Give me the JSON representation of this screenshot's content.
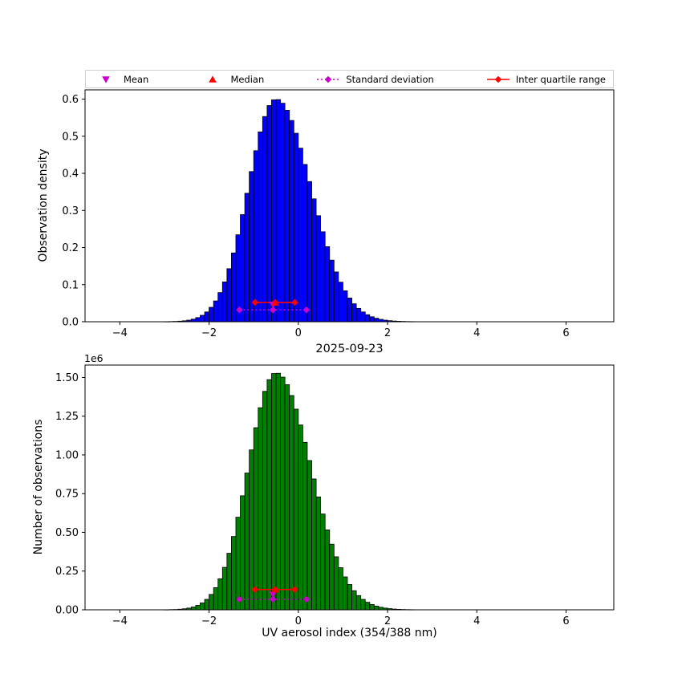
{
  "figure": {
    "xlabel": "UV aerosol index (354/388 nm)",
    "legend": {
      "items": [
        {
          "label": "Mean",
          "marker": "triangle-down",
          "color": "#cc00cc",
          "line": "none"
        },
        {
          "label": "Median",
          "marker": "triangle-up",
          "color": "#ff0000",
          "line": "none"
        },
        {
          "label": "Standard deviation",
          "marker": "diamond",
          "color": "#cc00cc",
          "line": "dotted"
        },
        {
          "label": "Inter quartile range",
          "marker": "diamond",
          "color": "#ff0000",
          "line": "solid"
        }
      ]
    }
  },
  "chart_data": [
    {
      "type": "bar",
      "name": "observation-density-histogram",
      "ylabel": "Observation density",
      "bar_color": "#0000ff",
      "bin_start": -3.0,
      "bin_width": 0.1,
      "values": [
        0.0002,
        0.0005,
        0.0008,
        0.0015,
        0.0025,
        0.0043,
        0.007,
        0.0112,
        0.0174,
        0.0264,
        0.0389,
        0.0561,
        0.0786,
        0.1074,
        0.143,
        0.1855,
        0.2344,
        0.2887,
        0.3463,
        0.4048,
        0.461,
        0.5116,
        0.5531,
        0.5827,
        0.5981,
        0.5988,
        0.589,
        0.57,
        0.5425,
        0.508,
        0.4679,
        0.424,
        0.3779,
        0.3313,
        0.2858,
        0.2425,
        0.2023,
        0.1661,
        0.1342,
        0.1066,
        0.0833,
        0.064,
        0.0484,
        0.036,
        0.0264,
        0.019,
        0.0134,
        0.0094,
        0.0064,
        0.0043,
        0.0029,
        0.0019,
        0.0012,
        0.0008,
        0.0005,
        0.0003
      ],
      "xlim": [
        -4.78,
        7.07
      ],
      "ylim": [
        0,
        0.625
      ],
      "xticks": [
        -4,
        -2,
        0,
        2,
        4,
        6
      ],
      "xtick_labels": [
        "−4",
        "−2",
        "0",
        "2",
        "4",
        "6"
      ],
      "yticks": [
        0,
        0.1,
        0.2,
        0.3,
        0.4,
        0.5,
        0.6
      ],
      "ytick_labels": [
        "0.0",
        "0.1",
        "0.2",
        "0.3",
        "0.4",
        "0.5",
        "0.6"
      ],
      "annotations": [
        {
          "kind": "errorbar",
          "name": "standard-deviation",
          "color": "#cc00cc",
          "style": "dotted",
          "y": 0.032,
          "x1": -1.32,
          "x2": 0.18,
          "center": -0.57,
          "marker": "diamond"
        },
        {
          "kind": "errorbar",
          "name": "inter-quartile-range",
          "color": "#ff0000",
          "style": "solid",
          "y": 0.052,
          "x1": -0.97,
          "x2": -0.08,
          "center": -0.52,
          "marker": "diamond"
        },
        {
          "kind": "marker",
          "name": "mean",
          "color": "#cc00cc",
          "marker": "triangle-down",
          "x": -0.57,
          "y": 0.046
        },
        {
          "kind": "marker",
          "name": "median",
          "color": "#ff0000",
          "marker": "triangle-up",
          "x": -0.52,
          "y": 0.052
        }
      ]
    },
    {
      "type": "bar",
      "name": "observation-count-histogram",
      "title": "2025-09-23",
      "ylabel": "Number of observations",
      "offset_label": "1e6",
      "bar_color": "#008000",
      "bin_start": -3.0,
      "bin_width": 0.1,
      "values": [
        0.0005,
        0.0013,
        0.002,
        0.0038,
        0.0064,
        0.011,
        0.0179,
        0.0286,
        0.0444,
        0.0673,
        0.0992,
        0.1431,
        0.2004,
        0.2739,
        0.3647,
        0.473,
        0.5977,
        0.7362,
        0.8831,
        1.0322,
        1.1756,
        1.3046,
        1.4104,
        1.4859,
        1.5252,
        1.5269,
        1.502,
        1.4535,
        1.3834,
        1.2954,
        1.1932,
        1.0812,
        0.9637,
        0.8448,
        0.7288,
        0.6184,
        0.5159,
        0.4236,
        0.3422,
        0.2718,
        0.2124,
        0.1632,
        0.1234,
        0.0918,
        0.0673,
        0.0485,
        0.0342,
        0.024,
        0.0163,
        0.011,
        0.0074,
        0.0048,
        0.0031,
        0.002,
        0.0013,
        0.0008
      ],
      "xlim": [
        -4.78,
        7.07
      ],
      "ylim": [
        0,
        1.58
      ],
      "xticks": [
        -4,
        -2,
        0,
        2,
        4,
        6
      ],
      "xtick_labels": [
        "−4",
        "−2",
        "0",
        "2",
        "4",
        "6"
      ],
      "yticks": [
        0,
        0.25,
        0.5,
        0.75,
        1.0,
        1.25,
        1.5
      ],
      "ytick_labels": [
        "0.00",
        "0.25",
        "0.50",
        "0.75",
        "1.00",
        "1.25",
        "1.50"
      ],
      "annotations": [
        {
          "kind": "errorbar",
          "name": "standard-deviation",
          "color": "#cc00cc",
          "style": "dotted",
          "y": 0.068,
          "x1": -1.32,
          "x2": 0.18,
          "center": -0.57,
          "marker": "diamond"
        },
        {
          "kind": "errorbar",
          "name": "inter-quartile-range",
          "color": "#ff0000",
          "style": "solid",
          "y": 0.131,
          "x1": -0.97,
          "x2": -0.08,
          "center": -0.52,
          "marker": "diamond"
        },
        {
          "kind": "marker",
          "name": "mean",
          "color": "#cc00cc",
          "marker": "triangle-down",
          "x": -0.57,
          "y": 0.098
        },
        {
          "kind": "marker",
          "name": "median",
          "color": "#ff0000",
          "marker": "triangle-up",
          "x": -0.52,
          "y": 0.131
        }
      ]
    }
  ]
}
